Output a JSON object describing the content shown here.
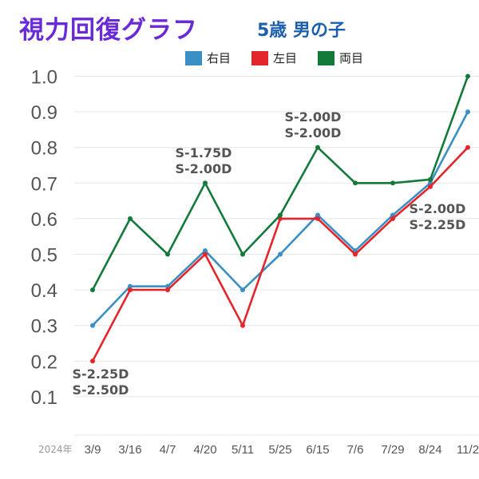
{
  "title": "視力回復グラフ",
  "subtitle": "5歳 男の子",
  "colors": {
    "right": "#3a8fc4",
    "left": "#e3262c",
    "both": "#137a3a"
  },
  "chart_data": {
    "type": "line",
    "year_label": "2024年",
    "categories": [
      "3/9",
      "3/16",
      "4/7",
      "4/20",
      "5/11",
      "5/25",
      "6/15",
      "7/6",
      "7/29",
      "8/24",
      "11/2"
    ],
    "ylim": [
      0.1,
      1.0
    ],
    "yticks": [
      "0.1",
      "0.2",
      "0.3",
      "0.4",
      "0.5",
      "0.6",
      "0.7",
      "0.8",
      "0.9",
      "1.0"
    ],
    "grid": true,
    "legend_position": "top-center",
    "series": [
      {
        "key": "right",
        "name": "右目",
        "values": [
          0.3,
          0.41,
          0.41,
          0.51,
          0.4,
          0.5,
          0.61,
          0.51,
          0.61,
          0.7,
          0.9
        ]
      },
      {
        "key": "left",
        "name": "左目",
        "values": [
          0.2,
          0.4,
          0.4,
          0.5,
          0.3,
          0.6,
          0.6,
          0.5,
          0.6,
          0.69,
          0.8
        ]
      },
      {
        "key": "both",
        "name": "両目",
        "values": [
          0.4,
          0.6,
          0.5,
          0.7,
          0.5,
          0.61,
          0.8,
          0.7,
          0.7,
          0.71,
          1.0
        ]
      }
    ],
    "annotations": [
      {
        "category": "3/9",
        "lines": [
          "S-2.25D",
          "S-2.50D"
        ]
      },
      {
        "category": "4/20",
        "lines": [
          "S-1.75D",
          "S-2.00D"
        ]
      },
      {
        "category": "6/15",
        "lines": [
          "S-2.00D",
          "S-2.00D"
        ]
      },
      {
        "category": "8/24",
        "lines": [
          "S-2.00D",
          "S-2.25D"
        ]
      }
    ]
  }
}
